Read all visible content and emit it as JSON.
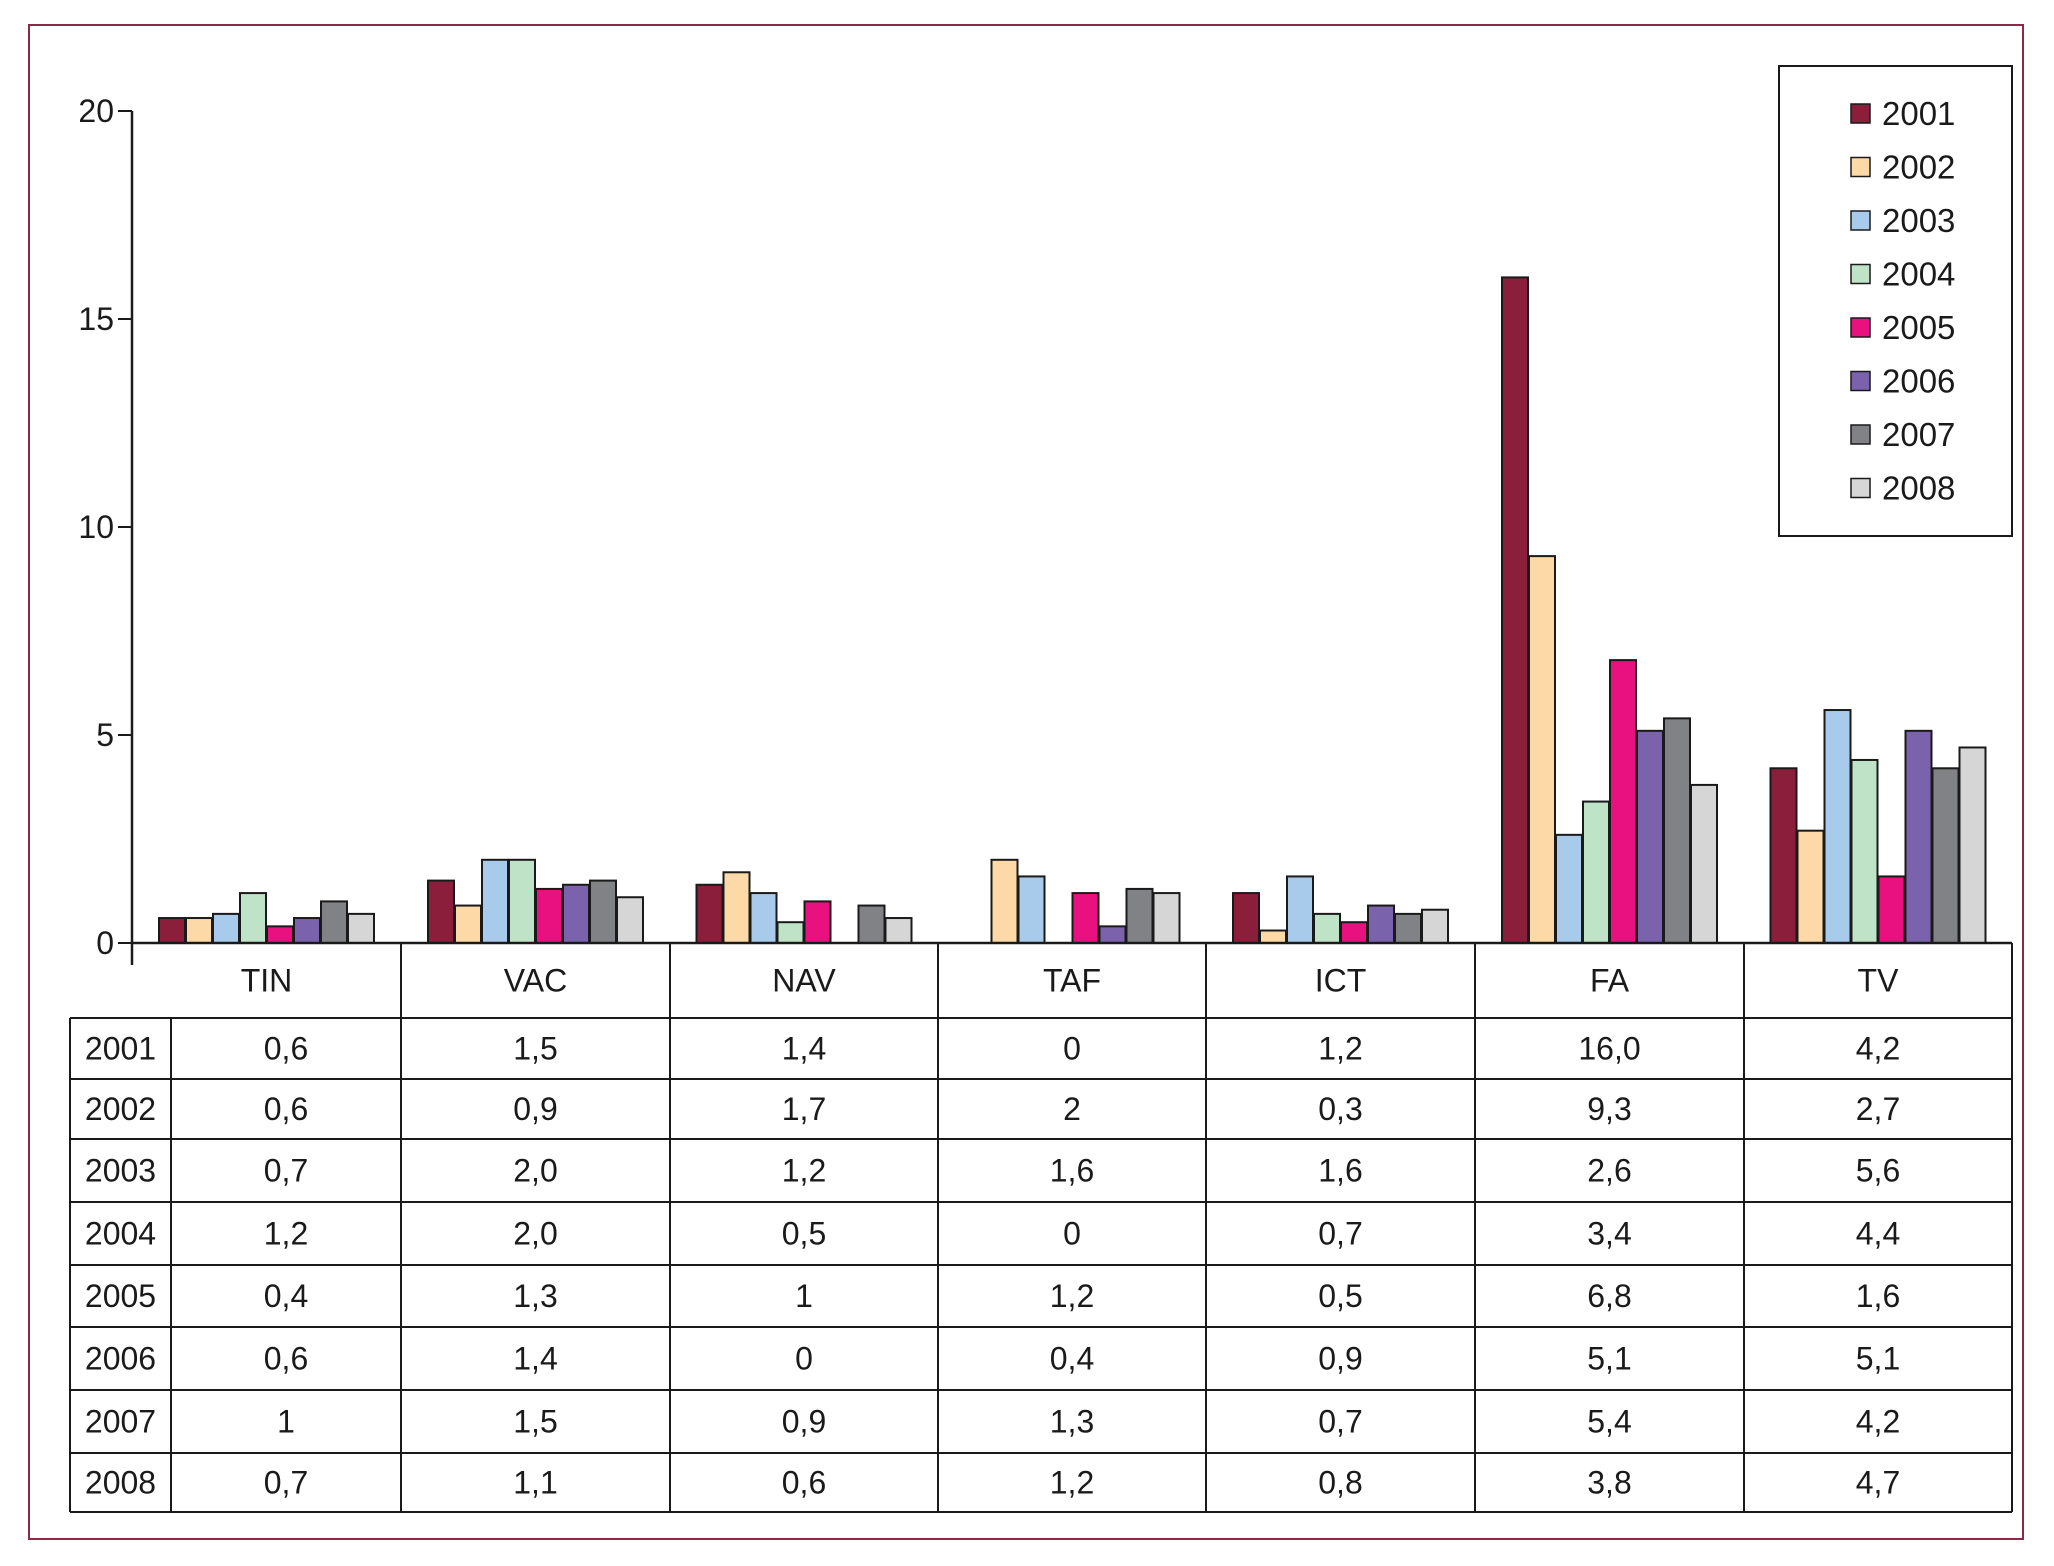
{
  "chart_data": {
    "type": "bar",
    "categories": [
      "TIN",
      "VAC",
      "NAV",
      "TAF",
      "ICT",
      "FA",
      "TV"
    ],
    "ylim": [
      0,
      20
    ],
    "yticks": [
      "0",
      "5",
      "10",
      "15",
      "20"
    ],
    "ytick_values": [
      0,
      5,
      10,
      15,
      20
    ],
    "legend_position": "top-right",
    "grid": false,
    "series": [
      {
        "name": "2001",
        "color": "#8b1e3a",
        "values": [
          0.6,
          1.5,
          1.4,
          0,
          1.2,
          16.0,
          4.2
        ],
        "labels": [
          "0,6",
          "1,5",
          "1,4",
          "0",
          "1,2",
          "16,0",
          "4,2"
        ]
      },
      {
        "name": "2002",
        "color": "#fdd9a8",
        "values": [
          0.6,
          0.9,
          1.7,
          2,
          0.3,
          9.3,
          2.7
        ],
        "labels": [
          "0,6",
          "0,9",
          "1,7",
          "2",
          "0,3",
          "9,3",
          "2,7"
        ]
      },
      {
        "name": "2003",
        "color": "#a9cbeb",
        "values": [
          0.7,
          2.0,
          1.2,
          1.6,
          1.6,
          2.6,
          5.6
        ],
        "labels": [
          "0,7",
          "2,0",
          "1,2",
          "1,6",
          "1,6",
          "2,6",
          "5,6"
        ]
      },
      {
        "name": "2004",
        "color": "#bfe3c6",
        "values": [
          1.2,
          2.0,
          0.5,
          0,
          0.7,
          3.4,
          4.4
        ],
        "labels": [
          "1,2",
          "2,0",
          "0,5",
          "0",
          "0,7",
          "3,4",
          "4,4"
        ]
      },
      {
        "name": "2005",
        "color": "#e8117f",
        "values": [
          0.4,
          1.3,
          1,
          1.2,
          0.5,
          6.8,
          1.6
        ],
        "labels": [
          "0,4",
          "1,3",
          "1",
          "1,2",
          "0,5",
          "6,8",
          "1,6"
        ]
      },
      {
        "name": "2006",
        "color": "#7b62ad",
        "values": [
          0.6,
          1.4,
          0,
          0.4,
          0.9,
          5.1,
          5.1
        ],
        "labels": [
          "0,6",
          "1,4",
          "0",
          "0,4",
          "0,9",
          "5,1",
          "5,1"
        ]
      },
      {
        "name": "2007",
        "color": "#808285",
        "values": [
          1,
          1.5,
          0.9,
          1.3,
          0.7,
          5.4,
          4.2
        ],
        "labels": [
          "1",
          "1,5",
          "0,9",
          "1,3",
          "0,7",
          "5,4",
          "4,2"
        ]
      },
      {
        "name": "2008",
        "color": "#d6d6d6",
        "values": [
          0.7,
          1.1,
          0.6,
          1.2,
          0.8,
          3.8,
          4.7
        ],
        "labels": [
          "0,7",
          "1,1",
          "0,6",
          "1,2",
          "0,8",
          "3,8",
          "4,7"
        ]
      }
    ]
  }
}
